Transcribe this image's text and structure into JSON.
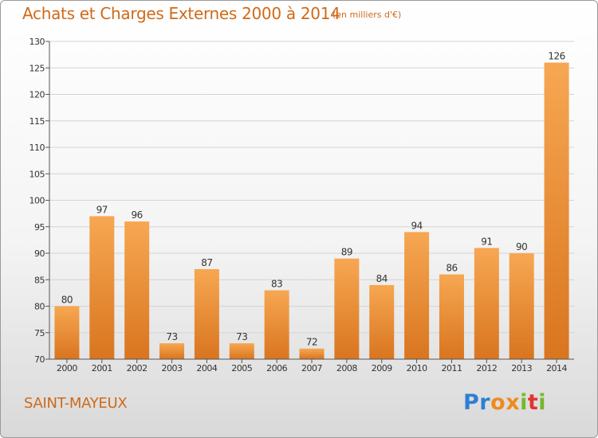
{
  "header": {
    "title": "Achats et Charges Externes 2000 à 2014",
    "unit": "(en milliers d'€)"
  },
  "footer": {
    "place": "SAINT-MAYEUX",
    "logo_letters": [
      {
        "ch": "P",
        "color": "#2f7fd2"
      },
      {
        "ch": "r",
        "color": "#2f7fd2"
      },
      {
        "ch": "o",
        "color": "#ef8a1d"
      },
      {
        "ch": "x",
        "color": "#ef8a1d"
      },
      {
        "ch": "i",
        "color": "#76b82a"
      },
      {
        "ch": "t",
        "color": "#e3342f"
      },
      {
        "ch": "i",
        "color": "#76b82a"
      }
    ]
  },
  "chart_data": {
    "type": "bar",
    "title": "Achats et Charges Externes 2000 à 2014",
    "subtitle": "(en milliers d'€)",
    "categories": [
      "2000",
      "2001",
      "2002",
      "2003",
      "2004",
      "2005",
      "2006",
      "2007",
      "2008",
      "2009",
      "2010",
      "2011",
      "2012",
      "2013",
      "2014"
    ],
    "values": [
      80,
      97,
      96,
      73,
      87,
      73,
      83,
      72,
      89,
      84,
      94,
      86,
      91,
      90,
      126
    ],
    "data_labels": [
      "80",
      "97",
      "96",
      "73",
      "87",
      "73",
      "83",
      "72",
      "89",
      "84",
      "94",
      "86",
      "91",
      "90",
      "126"
    ],
    "ylim": [
      70,
      130
    ],
    "yticks": [
      70,
      75,
      80,
      85,
      90,
      95,
      100,
      105,
      110,
      115,
      120,
      125,
      130
    ],
    "xlabel": "",
    "ylabel": "",
    "grid": true,
    "colors": {
      "bar_light": "#f7a752",
      "bar_dark": "#d9751f",
      "grid": "#d4d4d4",
      "axis": "#555555",
      "text": "#333333"
    }
  }
}
